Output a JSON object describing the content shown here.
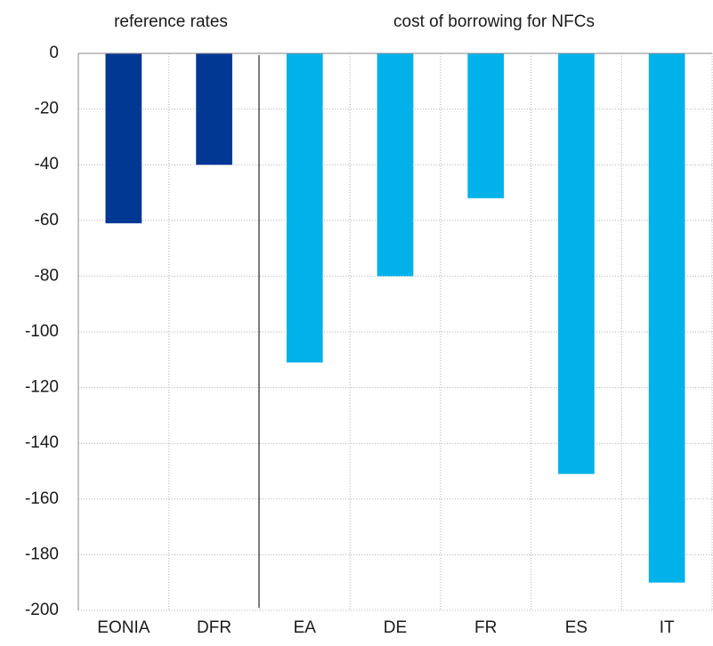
{
  "chart_data": {
    "type": "bar",
    "annotations": [
      "reference rates",
      "cost of borrowing for NFCs"
    ],
    "categories": [
      "EONIA",
      "DFR",
      "EA",
      "DE",
      "FR",
      "ES",
      "IT"
    ],
    "values": [
      -61,
      -40,
      -111,
      -80,
      -52,
      -151,
      -190
    ],
    "colors": [
      "#003894",
      "#003894",
      "#00b1ea",
      "#00b1ea",
      "#00b1ea",
      "#00b1ea",
      "#00b1ea"
    ],
    "ylim": [
      -200,
      0
    ],
    "yticks": [
      0,
      -20,
      -40,
      -60,
      -80,
      -100,
      -120,
      -140,
      -160,
      -180,
      -200
    ],
    "grid": true
  }
}
